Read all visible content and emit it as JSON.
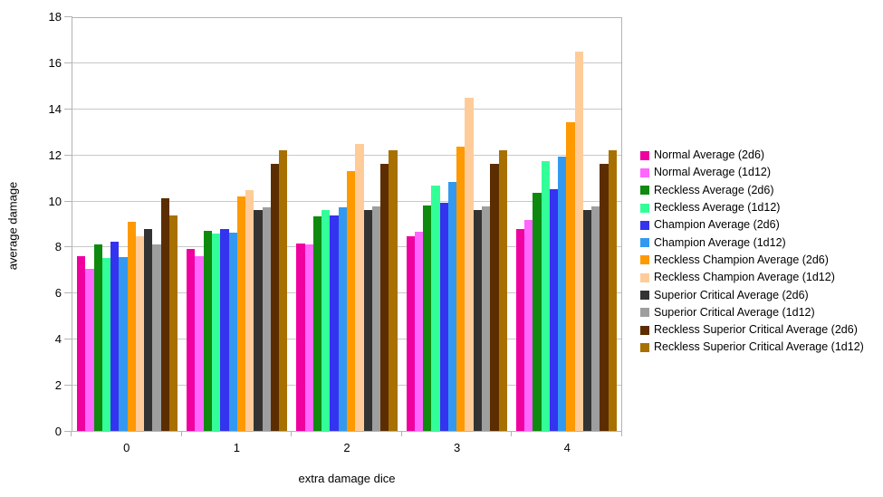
{
  "chart_data": {
    "type": "bar",
    "title": "",
    "xlabel": "extra damage dice",
    "ylabel": "average damage",
    "categories": [
      "0",
      "1",
      "2",
      "3",
      "4"
    ],
    "ylim": [
      0,
      18
    ],
    "ytick_step": 2,
    "grid": true,
    "legend_position": "right",
    "series": [
      {
        "name": "Normal Average (2d6)",
        "color": "#F0009E",
        "values": [
          7.6,
          7.9,
          8.15,
          8.45,
          8.75
        ]
      },
      {
        "name": "Normal Average (1d12)",
        "color": "#FF66FF",
        "values": [
          7.05,
          7.6,
          8.1,
          8.65,
          9.15
        ]
      },
      {
        "name": "Reckless Average (2d6)",
        "color": "#0E8A0E",
        "values": [
          8.1,
          8.7,
          9.3,
          9.8,
          10.35
        ]
      },
      {
        "name": "Reckless Average (1d12)",
        "color": "#33FF99",
        "values": [
          7.5,
          8.55,
          9.6,
          10.65,
          11.7
        ]
      },
      {
        "name": "Champion Average (2d6)",
        "color": "#3333F0",
        "values": [
          8.2,
          8.75,
          9.35,
          9.9,
          10.5
        ]
      },
      {
        "name": "Champion Average (1d12)",
        "color": "#3399F0",
        "values": [
          7.55,
          8.6,
          9.7,
          10.8,
          11.9
        ]
      },
      {
        "name": "Reckless Champion Average (2d6)",
        "color": "#FF9900",
        "values": [
          9.1,
          10.2,
          11.3,
          12.35,
          13.4
        ]
      },
      {
        "name": "Reckless Champion Average (1d12)",
        "color": "#FFCC99",
        "values": [
          8.45,
          10.45,
          12.45,
          14.45,
          16.45
        ]
      },
      {
        "name": "Superior Critical Average (2d6)",
        "color": "#333333",
        "values": [
          8.75,
          9.6,
          9.6,
          9.6,
          9.6
        ]
      },
      {
        "name": "Superior Critical Average (1d12)",
        "color": "#9E9E9E",
        "values": [
          8.1,
          9.7,
          9.75,
          9.75,
          9.75
        ]
      },
      {
        "name": "Reckless Superior Critical Average (2d6)",
        "color": "#5C2D00",
        "values": [
          10.1,
          11.6,
          11.6,
          11.6,
          11.6
        ]
      },
      {
        "name": "Reckless Superior Critical Average (1d12)",
        "color": "#A87000",
        "values": [
          9.35,
          12.2,
          12.2,
          12.2,
          12.2
        ]
      }
    ]
  }
}
